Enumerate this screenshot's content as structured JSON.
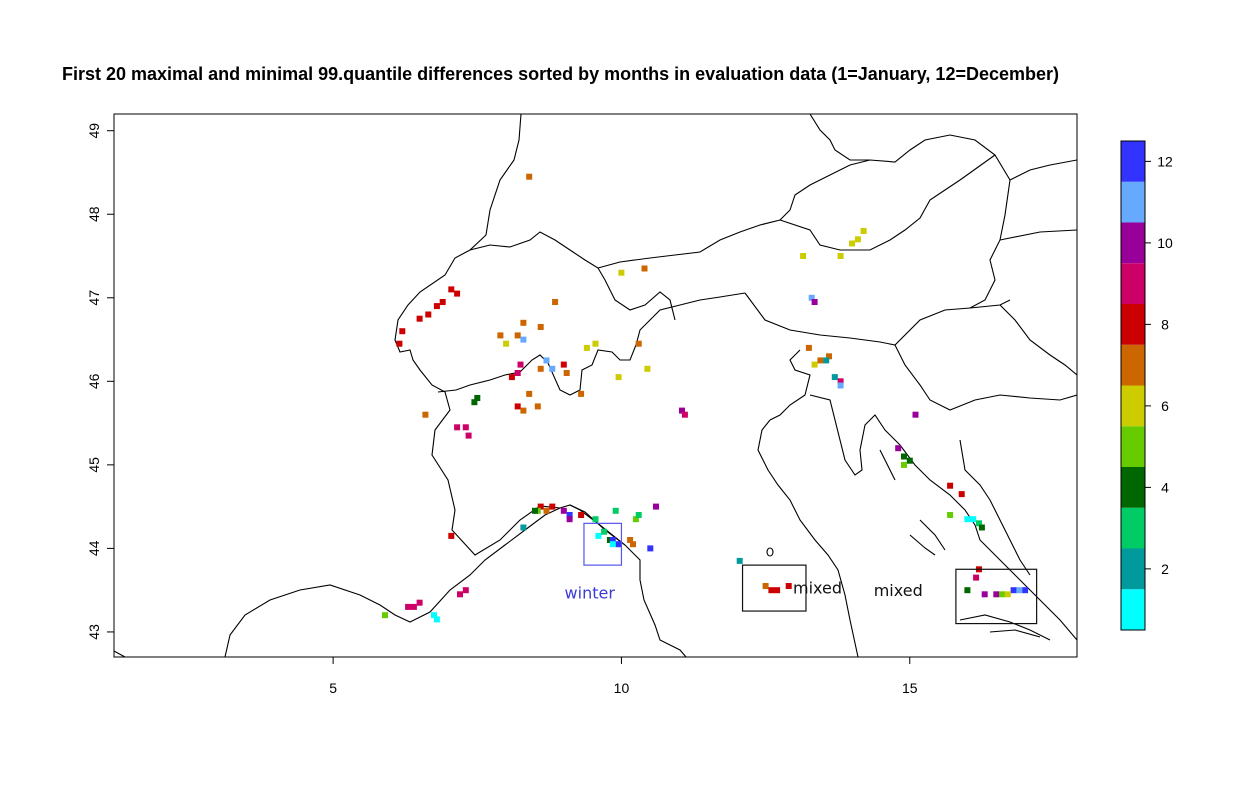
{
  "title": "First 20 maximal and minimal 99.quantile differences sorted by months in evaluation data (1=January, 12=December)",
  "map": {
    "x_axis": {
      "range": [
        1.2,
        17.9
      ],
      "ticks": [
        5,
        10,
        15
      ]
    },
    "y_axis": {
      "range": [
        42.7,
        49.2
      ],
      "ticks": [
        43,
        44,
        45,
        46,
        47,
        48,
        49
      ]
    }
  },
  "legend": {
    "colors": [
      "#00ffff",
      "#00999c",
      "#00cc66",
      "#006600",
      "#66cc00",
      "#cccc00",
      "#cc6600",
      "#cc0000",
      "#cc0066",
      "#990099",
      "#66aaff",
      "#3333ff"
    ],
    "tick_labels": [
      "2",
      "4",
      "6",
      "8",
      "10",
      "12"
    ],
    "tick_months": [
      2,
      4,
      6,
      8,
      10,
      12
    ]
  },
  "annotations": [
    {
      "label": "winter",
      "color": "#3b3bd6",
      "lon": 9.45,
      "lat": 43.4
    },
    {
      "label": "mixed",
      "color": "#111111",
      "lon": 13.4,
      "lat": 43.46
    },
    {
      "label": "mixed",
      "color": "#111111",
      "lon": 14.8,
      "lat": 43.43
    }
  ],
  "boxes": [
    {
      "lon": [
        9.35,
        10.0
      ],
      "lat": [
        43.8,
        44.3
      ],
      "color": "#5555ee"
    },
    {
      "lon": [
        12.1,
        13.2
      ],
      "lat": [
        43.25,
        43.8
      ],
      "color": "#111111"
    },
    {
      "lon": [
        15.8,
        17.2
      ],
      "lat": [
        43.1,
        43.75
      ],
      "color": "#111111"
    }
  ],
  "grid_points": [
    [
      8.4,
      48.45,
      7
    ],
    [
      6.2,
      46.6,
      8
    ],
    [
      6.15,
      46.45,
      8
    ],
    [
      6.5,
      46.75,
      8
    ],
    [
      6.65,
      46.8,
      8
    ],
    [
      6.8,
      46.9,
      8
    ],
    [
      6.9,
      46.95,
      8
    ],
    [
      7.05,
      47.1,
      8
    ],
    [
      7.15,
      47.05,
      8
    ],
    [
      8.3,
      46.7,
      7
    ],
    [
      8.2,
      46.55,
      7
    ],
    [
      8.3,
      46.5,
      11
    ],
    [
      7.9,
      46.55,
      7
    ],
    [
      8.0,
      46.45,
      6
    ],
    [
      8.6,
      46.65,
      7
    ],
    [
      8.85,
      46.95,
      7
    ],
    [
      8.7,
      46.25,
      11
    ],
    [
      8.8,
      46.15,
      11
    ],
    [
      8.6,
      46.15,
      7
    ],
    [
      8.2,
      46.1,
      9
    ],
    [
      8.25,
      46.2,
      9
    ],
    [
      8.1,
      46.05,
      8
    ],
    [
      8.4,
      45.85,
      7
    ],
    [
      9.0,
      46.2,
      8
    ],
    [
      9.05,
      46.1,
      7
    ],
    [
      9.4,
      46.4,
      6
    ],
    [
      9.55,
      46.45,
      6
    ],
    [
      9.95,
      46.05,
      6
    ],
    [
      9.3,
      45.85,
      7
    ],
    [
      10.3,
      46.45,
      7
    ],
    [
      10.45,
      46.15,
      6
    ],
    [
      10.0,
      47.3,
      6
    ],
    [
      10.4,
      47.35,
      7
    ],
    [
      8.2,
      45.7,
      8
    ],
    [
      8.3,
      45.65,
      7
    ],
    [
      8.55,
      45.7,
      7
    ],
    [
      7.5,
      45.8,
      4
    ],
    [
      7.45,
      45.75,
      4
    ],
    [
      6.6,
      45.6,
      7
    ],
    [
      7.3,
      45.45,
      9
    ],
    [
      7.35,
      45.35,
      9
    ],
    [
      7.15,
      45.45,
      9
    ],
    [
      8.8,
      44.5,
      8
    ],
    [
      8.6,
      44.5,
      8
    ],
    [
      8.7,
      44.45,
      7
    ],
    [
      8.55,
      44.45,
      5
    ],
    [
      8.5,
      44.45,
      4
    ],
    [
      9.0,
      44.45,
      10
    ],
    [
      9.1,
      44.4,
      12
    ],
    [
      9.3,
      44.4,
      8
    ],
    [
      9.1,
      44.35,
      10
    ],
    [
      9.55,
      44.35,
      3
    ],
    [
      9.9,
      44.45,
      3
    ],
    [
      9.6,
      44.15,
      1
    ],
    [
      9.7,
      44.2,
      3
    ],
    [
      9.8,
      44.1,
      4
    ],
    [
      9.85,
      44.1,
      12
    ],
    [
      9.95,
      44.05,
      12
    ],
    [
      9.85,
      44.05,
      1
    ],
    [
      10.15,
      44.1,
      7
    ],
    [
      10.2,
      44.05,
      7
    ],
    [
      10.25,
      44.35,
      5
    ],
    [
      10.3,
      44.4,
      3
    ],
    [
      10.6,
      44.5,
      10
    ],
    [
      10.5,
      44.0,
      12
    ],
    [
      8.3,
      44.25,
      2
    ],
    [
      7.05,
      44.15,
      8
    ],
    [
      6.4,
      43.3,
      9
    ],
    [
      6.5,
      43.35,
      9
    ],
    [
      6.3,
      43.3,
      9
    ],
    [
      5.9,
      43.2,
      5
    ],
    [
      6.8,
      43.15,
      1
    ],
    [
      6.75,
      43.2,
      1
    ],
    [
      7.3,
      43.5,
      9
    ],
    [
      7.2,
      43.45,
      9
    ],
    [
      11.05,
      45.65,
      10
    ],
    [
      11.1,
      45.6,
      9
    ],
    [
      12.6,
      43.5,
      8
    ],
    [
      12.7,
      43.5,
      8
    ],
    [
      12.9,
      43.55,
      8
    ],
    [
      12.5,
      43.55,
      7
    ],
    [
      12.05,
      43.85,
      2
    ],
    [
      14.2,
      47.8,
      6
    ],
    [
      14.1,
      47.7,
      6
    ],
    [
      14.0,
      47.65,
      6
    ],
    [
      13.8,
      47.5,
      6
    ],
    [
      13.15,
      47.5,
      6
    ],
    [
      13.3,
      47.0,
      11
    ],
    [
      13.35,
      46.95,
      10
    ],
    [
      13.25,
      46.4,
      7
    ],
    [
      13.45,
      46.25,
      7
    ],
    [
      13.6,
      46.3,
      7
    ],
    [
      13.7,
      46.05,
      2
    ],
    [
      13.8,
      46.0,
      9
    ],
    [
      13.8,
      45.95,
      11
    ],
    [
      13.55,
      46.25,
      2
    ],
    [
      13.35,
      46.2,
      6
    ],
    [
      15.1,
      45.6,
      10
    ],
    [
      14.8,
      45.2,
      10
    ],
    [
      14.9,
      45.1,
      4
    ],
    [
      15.0,
      45.05,
      4
    ],
    [
      14.9,
      45.0,
      5
    ],
    [
      15.7,
      44.75,
      8
    ],
    [
      15.9,
      44.65,
      8
    ],
    [
      15.7,
      44.4,
      5
    ],
    [
      16.0,
      44.35,
      1
    ],
    [
      16.1,
      44.35,
      1
    ],
    [
      16.2,
      44.3,
      3
    ],
    [
      16.25,
      44.25,
      4
    ],
    [
      16.2,
      43.75,
      8
    ],
    [
      16.15,
      43.65,
      9
    ],
    [
      16.0,
      43.5,
      4
    ],
    [
      16.3,
      43.45,
      10
    ],
    [
      16.5,
      43.45,
      10
    ],
    [
      16.6,
      43.45,
      5
    ],
    [
      16.8,
      43.5,
      12
    ],
    [
      17.0,
      43.5,
      12
    ],
    [
      16.9,
      43.5,
      11
    ],
    [
      16.7,
      43.45,
      6
    ]
  ]
}
